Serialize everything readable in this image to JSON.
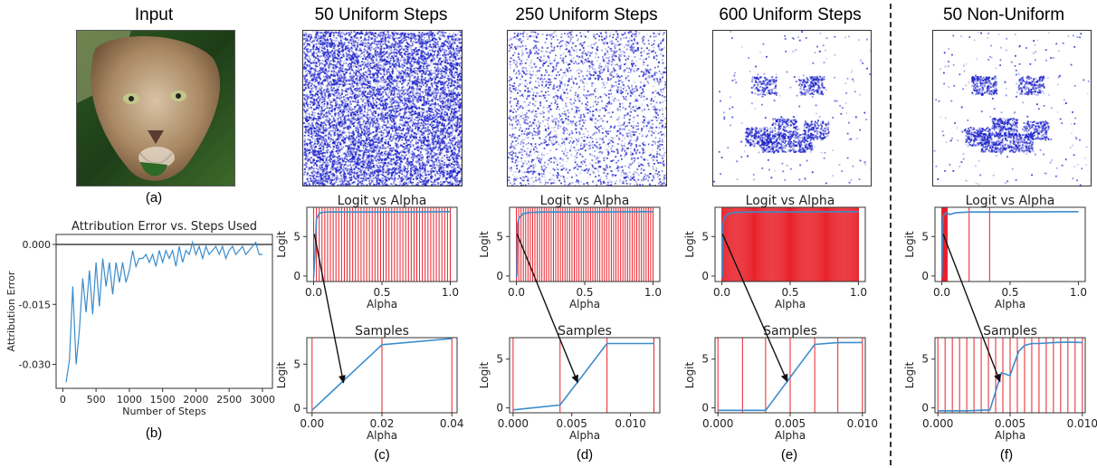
{
  "labels": {
    "input_title": "Input",
    "a": "(a)",
    "b": "(b)",
    "c": "(c)",
    "d": "(d)",
    "e": "(e)",
    "f": "(f)"
  },
  "columns": [
    {
      "title": "50 Uniform Steps"
    },
    {
      "title": "250 Uniform Steps"
    },
    {
      "title": "600 Uniform Steps"
    },
    {
      "title": "50 Non-Uniform"
    }
  ],
  "colors": {
    "line": "#3a8ccc",
    "red": "#e8202a",
    "attr": "#1a20c8"
  },
  "chart_data": [
    {
      "type": "line",
      "title": "Attribution Error vs. Steps Used",
      "xlabel": "Number of Steps",
      "ylabel": "Attribution Error",
      "xticks": [
        "0",
        "500",
        "1000",
        "1500",
        "2000",
        "2500",
        "3000"
      ],
      "yticks": [
        "0.000",
        "-0.015",
        "-0.030"
      ],
      "xlim": [
        -100,
        3150
      ],
      "ylim": [
        -0.036,
        0.0025
      ],
      "x": [
        50,
        100,
        150,
        200,
        250,
        300,
        350,
        400,
        450,
        500,
        550,
        600,
        650,
        700,
        750,
        800,
        850,
        900,
        950,
        1000,
        1050,
        1100,
        1150,
        1200,
        1250,
        1300,
        1350,
        1400,
        1450,
        1500,
        1550,
        1600,
        1650,
        1700,
        1750,
        1800,
        1850,
        1900,
        1950,
        2000,
        2050,
        2100,
        2150,
        2200,
        2250,
        2300,
        2350,
        2400,
        2450,
        2500,
        2550,
        2600,
        2650,
        2700,
        2750,
        2800,
        2850,
        2900,
        2950,
        3000
      ],
      "y": [
        -0.0345,
        -0.029,
        -0.0105,
        -0.03,
        -0.0215,
        -0.0085,
        -0.017,
        -0.0065,
        -0.0175,
        -0.0045,
        -0.0155,
        -0.0035,
        -0.0105,
        -0.0045,
        -0.0125,
        -0.0045,
        -0.0095,
        -0.0045,
        -0.0095,
        -0.0065,
        -0.0015,
        -0.0055,
        -0.0035,
        -0.0035,
        -0.0025,
        -0.0045,
        -0.0025,
        -0.0055,
        -0.0015,
        -0.0045,
        -0.0015,
        -0.0035,
        -0.0015,
        -0.0055,
        -0.0005,
        -0.0045,
        -0.0015,
        -0.0025,
        0.0005,
        -0.0025,
        -0.0005,
        -0.0035,
        -0.0005,
        -0.0025,
        -0.0015,
        -0.0005,
        -0.0025,
        -0.0005,
        -0.0035,
        -0.0015,
        -0.0005,
        -0.0025,
        -0.0015,
        -0.0005,
        -0.0025,
        -0.0015,
        -0.0005,
        0.0005,
        -0.0025,
        -0.0025
      ],
      "hline": 0
    },
    {
      "type": "line",
      "title": "Logit vs Alpha",
      "xlabel": "Alpha",
      "ylabel": "Logit",
      "xlim": [
        -0.05,
        1.05
      ],
      "ylim": [
        -0.7,
        8.7
      ],
      "xticks": [
        "0.0",
        "0.5",
        "1.0"
      ],
      "xtick_vals": [
        0,
        0.5,
        1
      ],
      "yticks": [
        "0",
        "5"
      ],
      "ytick_vals": [
        0,
        5
      ],
      "x": [
        0,
        0.01,
        0.02,
        0.04,
        0.06,
        0.1,
        0.2,
        0.3,
        0.5,
        0.7,
        1.0
      ],
      "y": [
        -0.2,
        3,
        7.2,
        7.9,
        8.05,
        8.1,
        8.1,
        8.1,
        8.1,
        8.1,
        8.15
      ],
      "vlines": {
        "uniform_count": 50
      },
      "zoom_from": [
        0.005,
        5.3
      ]
    },
    {
      "type": "line",
      "title": "Samples",
      "xlabel": "Alpha",
      "ylabel": "Logit",
      "xlim": [
        -0.0015,
        0.0415
      ],
      "ylim": [
        -0.5,
        8.0
      ],
      "xticks": [
        "0.00",
        "0.02",
        "0.04"
      ],
      "xtick_vals": [
        0,
        0.02,
        0.04
      ],
      "yticks": [
        "0",
        "5"
      ],
      "ytick_vals": [
        0,
        5
      ],
      "x": [
        0,
        0.02,
        0.04
      ],
      "y": [
        -0.2,
        7.2,
        7.9
      ],
      "vlines": {
        "values": [
          0,
          0.02,
          0.04
        ]
      },
      "zoom_to": [
        0.009,
        2.9
      ]
    },
    {
      "type": "line",
      "title": "Logit vs Alpha",
      "xlabel": "Alpha",
      "ylabel": "Logit",
      "xlim": [
        -0.05,
        1.05
      ],
      "ylim": [
        -0.7,
        8.7
      ],
      "xticks": [
        "0.0",
        "0.5",
        "1.0"
      ],
      "xtick_vals": [
        0,
        0.5,
        1
      ],
      "yticks": [
        "0",
        "5"
      ],
      "ytick_vals": [
        0,
        5
      ],
      "x": [
        0,
        0.004,
        0.008,
        0.02,
        0.05,
        0.1,
        0.2,
        0.5,
        1.0
      ],
      "y": [
        -0.2,
        0.2,
        6.6,
        7.4,
        7.9,
        8.05,
        8.1,
        8.1,
        8.15
      ],
      "vlines": {
        "uniform_count": 60
      },
      "zoom_from": [
        0.005,
        5.3
      ]
    },
    {
      "type": "line",
      "title": "Samples",
      "xlabel": "Alpha",
      "ylabel": "Logit",
      "xlim": [
        -0.0003,
        0.0125
      ],
      "ylim": [
        -0.5,
        7.2
      ],
      "xticks": [
        "0.000",
        "0.005",
        "0.010"
      ],
      "xtick_vals": [
        0,
        0.005,
        0.01
      ],
      "yticks": [
        "0",
        "5"
      ],
      "ytick_vals": [
        0,
        5
      ],
      "x": [
        0,
        0.004,
        0.008,
        0.012
      ],
      "y": [
        -0.2,
        0.3,
        6.6,
        6.6
      ],
      "vlines": {
        "values": [
          0,
          0.004,
          0.008,
          0.012
        ]
      },
      "zoom_to": [
        0.0055,
        2.6
      ]
    },
    {
      "type": "line",
      "title": "Logit vs Alpha",
      "xlabel": "Alpha",
      "ylabel": "Logit",
      "xlim": [
        -0.05,
        1.05
      ],
      "ylim": [
        -0.7,
        8.7
      ],
      "xticks": [
        "0.0",
        "0.5",
        "1.0"
      ],
      "xtick_vals": [
        0,
        0.5,
        1
      ],
      "yticks": [
        "0",
        "5"
      ],
      "ytick_vals": [
        0,
        5
      ],
      "x": [
        0,
        0.003,
        0.006,
        0.02,
        0.05,
        0.1,
        0.2,
        0.5,
        1.0
      ],
      "y": [
        -0.2,
        -0.2,
        6.5,
        7.4,
        7.9,
        8.05,
        8.1,
        8.1,
        8.15
      ],
      "vlines": {
        "uniform_count": 150
      },
      "zoom_from": [
        0.005,
        5.3
      ]
    },
    {
      "type": "line",
      "title": "Samples",
      "xlabel": "Alpha",
      "ylabel": "Logit",
      "xlim": [
        -0.0002,
        0.0102
      ],
      "ylim": [
        -0.5,
        7.2
      ],
      "xticks": [
        "0.000",
        "0.005",
        "0.010"
      ],
      "xtick_vals": [
        0,
        0.005,
        0.01
      ],
      "yticks": [
        "0",
        "5"
      ],
      "ytick_vals": [
        0,
        5
      ],
      "x": [
        0,
        0.0033,
        0.0067,
        0.0083,
        0.01
      ],
      "y": [
        -0.25,
        -0.25,
        6.5,
        6.7,
        6.7
      ],
      "vlines": {
        "values": [
          0,
          0.0017,
          0.0033,
          0.005,
          0.0067,
          0.0083,
          0.01
        ]
      },
      "zoom_to": [
        0.0048,
        2.7
      ]
    },
    {
      "type": "line",
      "title": "Logit vs Alpha",
      "xlabel": "Alpha",
      "ylabel": "Logit",
      "xlim": [
        -0.05,
        1.05
      ],
      "ylim": [
        -0.7,
        8.7
      ],
      "xticks": [
        "0.0",
        "0.5",
        "1.0"
      ],
      "xtick_vals": [
        0,
        0.5,
        1
      ],
      "yticks": [
        "0",
        "5"
      ],
      "ytick_vals": [
        0,
        5
      ],
      "x": [
        0,
        0.004,
        0.006,
        0.01,
        0.03,
        0.06,
        0.1,
        0.2,
        0.5,
        1.0
      ],
      "y": [
        -0.2,
        3,
        6.3,
        7.6,
        8.0,
        7.8,
        8.0,
        8.1,
        8.1,
        8.15
      ],
      "vlines": {
        "values": [
          0,
          0.002,
          0.004,
          0.006,
          0.008,
          0.01,
          0.012,
          0.014,
          0.016,
          0.018,
          0.02,
          0.022,
          0.024,
          0.026,
          0.028,
          0.03,
          0.034,
          0.04,
          0.2,
          0.35
        ]
      },
      "zoom_from": [
        0.01,
        5.3
      ]
    },
    {
      "type": "line",
      "title": "Samples",
      "xlabel": "Alpha",
      "ylabel": "Logit",
      "xlim": [
        -0.0002,
        0.0102
      ],
      "ylim": [
        -0.5,
        7.2
      ],
      "xticks": [
        "0.000",
        "0.005",
        "0.010"
      ],
      "xtick_vals": [
        0,
        0.005,
        0.01
      ],
      "yticks": [
        "0",
        "5"
      ],
      "ytick_vals": [
        0,
        5
      ],
      "x": [
        0,
        0.002,
        0.0036,
        0.0044,
        0.005,
        0.0052,
        0.0056,
        0.006,
        0.0065,
        0.007,
        0.008,
        0.009,
        0.01
      ],
      "y": [
        -0.3,
        -0.3,
        -0.2,
        3.6,
        3.3,
        4.2,
        5.8,
        6.4,
        6.6,
        6.6,
        6.7,
        6.75,
        6.7
      ],
      "vlines": {
        "values": [
          0,
          0.0005,
          0.001,
          0.0015,
          0.002,
          0.0025,
          0.003,
          0.0035,
          0.004,
          0.0045,
          0.005,
          0.0055,
          0.006,
          0.0065,
          0.007,
          0.0075,
          0.008,
          0.0085,
          0.009,
          0.0095,
          0.01
        ]
      },
      "zoom_to": [
        0.0043,
        2.7
      ]
    }
  ]
}
